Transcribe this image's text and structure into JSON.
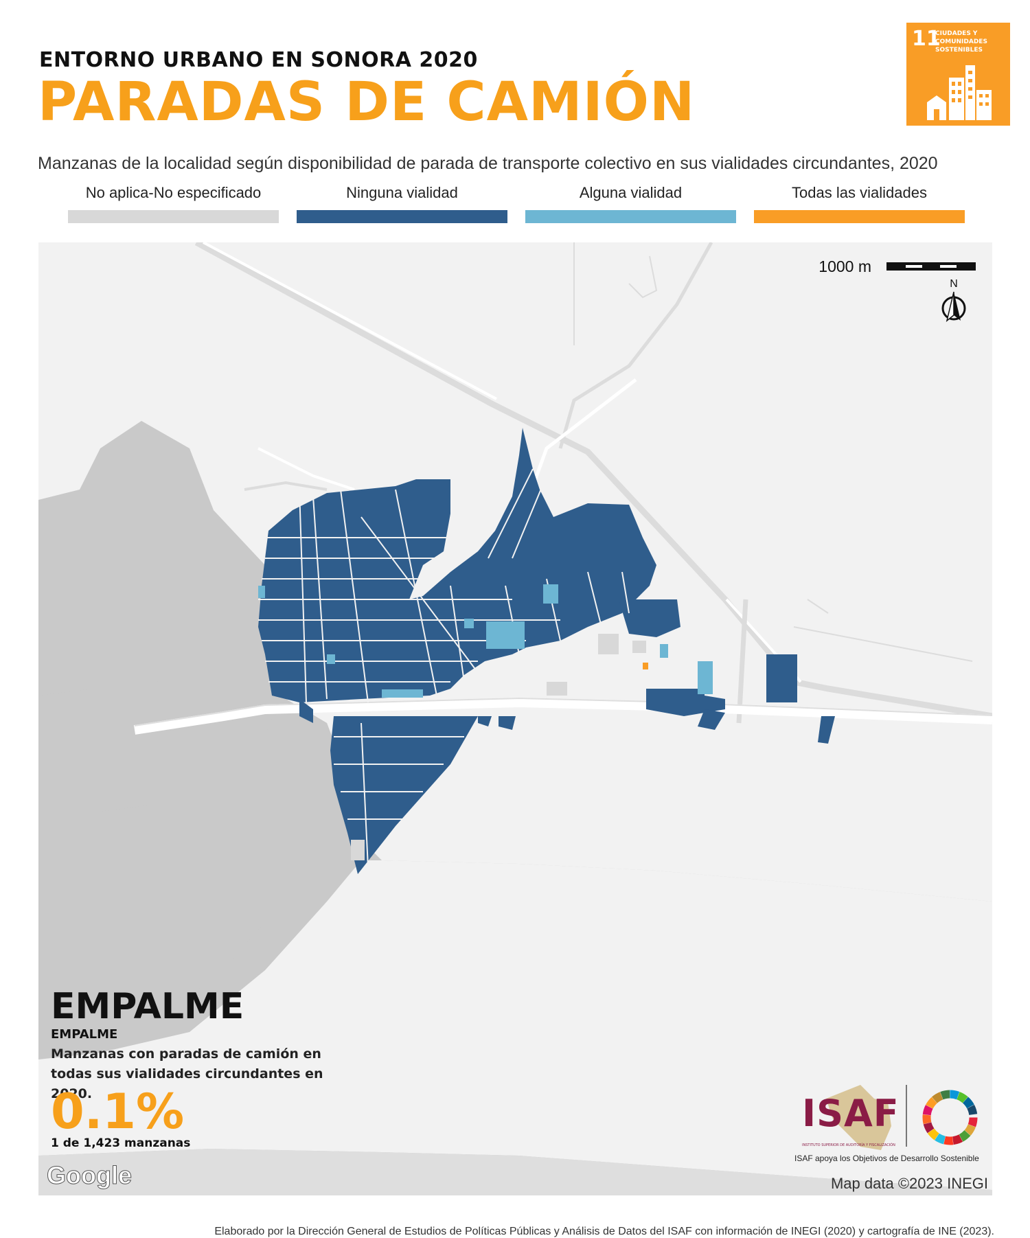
{
  "header": {
    "kicker": "ENTORNO URBANO EN SONORA 2020",
    "title": "PARADAS DE CAMIÓN",
    "subtitle": "Manzanas de la localidad según disponibilidad de parada de transporte colectivo en sus vialidades circundantes, 2020"
  },
  "legend": [
    {
      "label": "No aplica-No especificado",
      "color": "#d8d8d8"
    },
    {
      "label": "Ninguna vialidad",
      "color": "#2f5d8c"
    },
    {
      "label": "Alguna vialidad",
      "color": "#6db6d3"
    },
    {
      "label": "Todas las vialidades",
      "color": "#f99d26"
    }
  ],
  "sdg_badge": {
    "number": "11",
    "text": "CIUDADES Y COMUNIDADES SOSTENIBLES",
    "color": "#f99d26",
    "icon": "city-buildings-icon"
  },
  "map": {
    "scale_label": "1000 m",
    "north_label": "N",
    "place_name": "EMPALME",
    "place_subname": "EMPALME",
    "stat_description": "Manzanas con paradas de camión en todas sus vialidades circundantes en 2020.",
    "stat_value": "0.1%",
    "stat_count": "1 de 1,423 manzanas",
    "basemap_logo": "Google",
    "attribution": "Map data ©2023 INEGI",
    "water_color": "#c9c9c9",
    "land_color": "#f2f2f2",
    "road_color": "#ffffff"
  },
  "branding": {
    "logo_text": "ISAF",
    "logo_subtext": "INSTITUTO SUPERIOR DE AUDITORÍA Y FISCALIZACIÓN",
    "caption": "ISAF apoya los Objetivos de Desarrollo Sostenible",
    "logo_color": "#8a1c46",
    "sdg_wheel_icon": "sdg-wheel-icon"
  },
  "footer": "Elaborado por la Dirección General de Estudios de Políticas Públicas y Análisis de Datos del ISAF con información de INEGI (2020) y cartografía de INE (2023)."
}
